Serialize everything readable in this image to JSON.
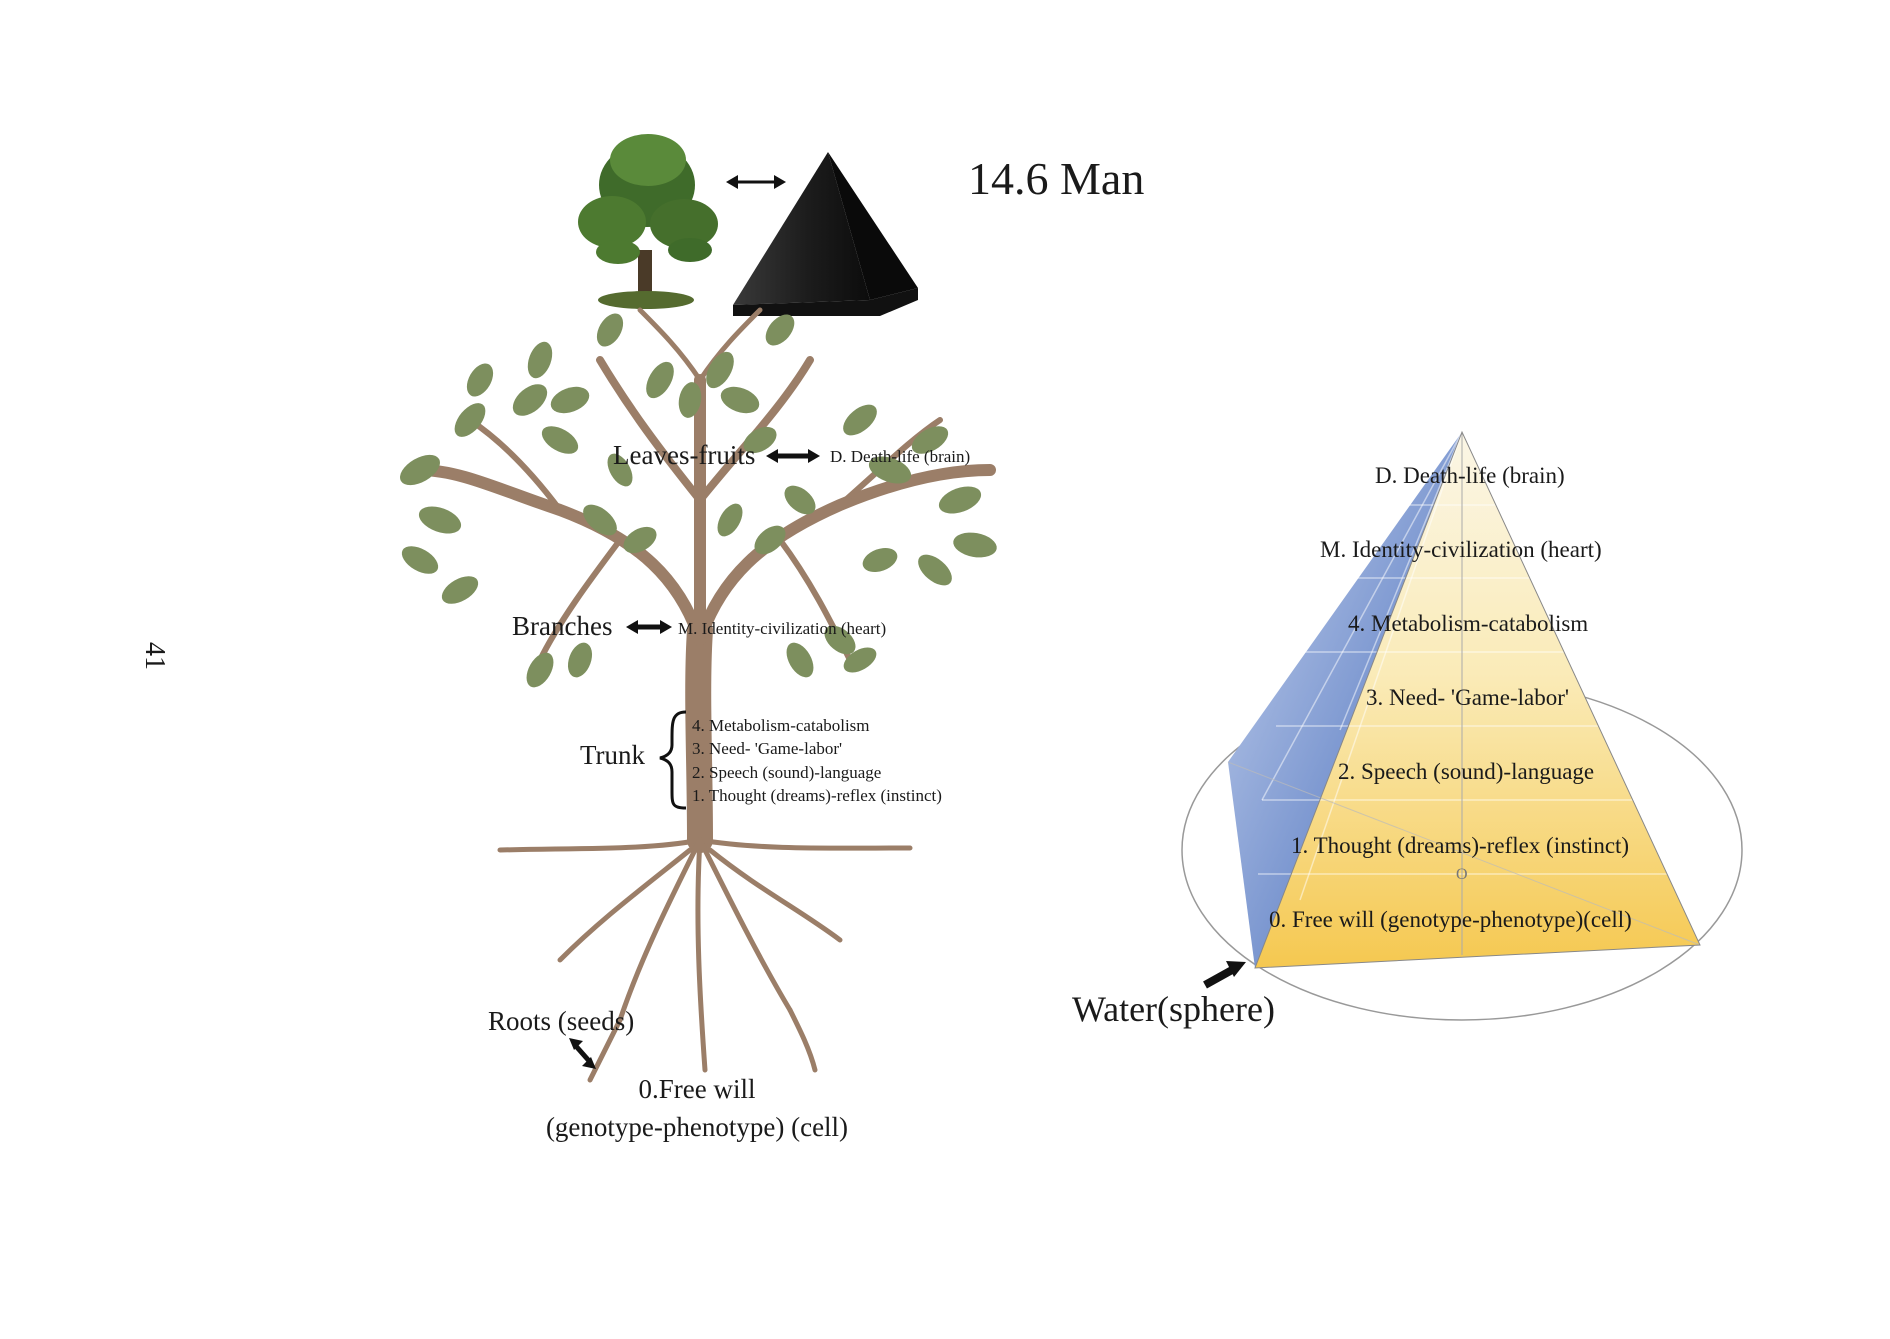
{
  "page_number": "41",
  "title": "14.6 Man",
  "top_icons": {
    "tree": "tree-icon",
    "arrow": "double-arrow-icon",
    "pyramid": "black-pyramid-icon"
  },
  "tree_diagram": {
    "leaves_label": "Leaves-fruits",
    "leaves_target": "D. Death-life (brain)",
    "branches_label": "Branches",
    "branches_target": "M. Identity-civilization (heart)",
    "trunk_label": "Trunk",
    "trunk_items": [
      "4. Metabolism-catabolism",
      "3. Need- 'Game-labor'",
      "2. Speech (sound)-language",
      "1. Thought (dreams)-reflex (instinct)"
    ],
    "roots_label": "Roots (seeds)",
    "roots_target_line1": "0.Free will",
    "roots_target_line2": "(genotype-phenotype) (cell)"
  },
  "pyramid_diagram": {
    "levels": [
      "D. Death-life (brain)",
      "M. Identity-civilization (heart)",
      "4. Metabolism-catabolism",
      "3. Need- 'Game-labor'",
      "2. Speech (sound)-language",
      "1. Thought (dreams)-reflex (instinct)",
      "0. Free will (genotype-phenotype)(cell)"
    ],
    "center_mark": "O",
    "water_label": "Water(sphere)"
  },
  "colors": {
    "trunk": "#9b7e68",
    "leaf": "#7d8f5e",
    "pyramid_face_top": "#fbf5e2",
    "pyramid_face_bottom": "#f5cc55",
    "pyramid_side": "#4b73bf"
  }
}
